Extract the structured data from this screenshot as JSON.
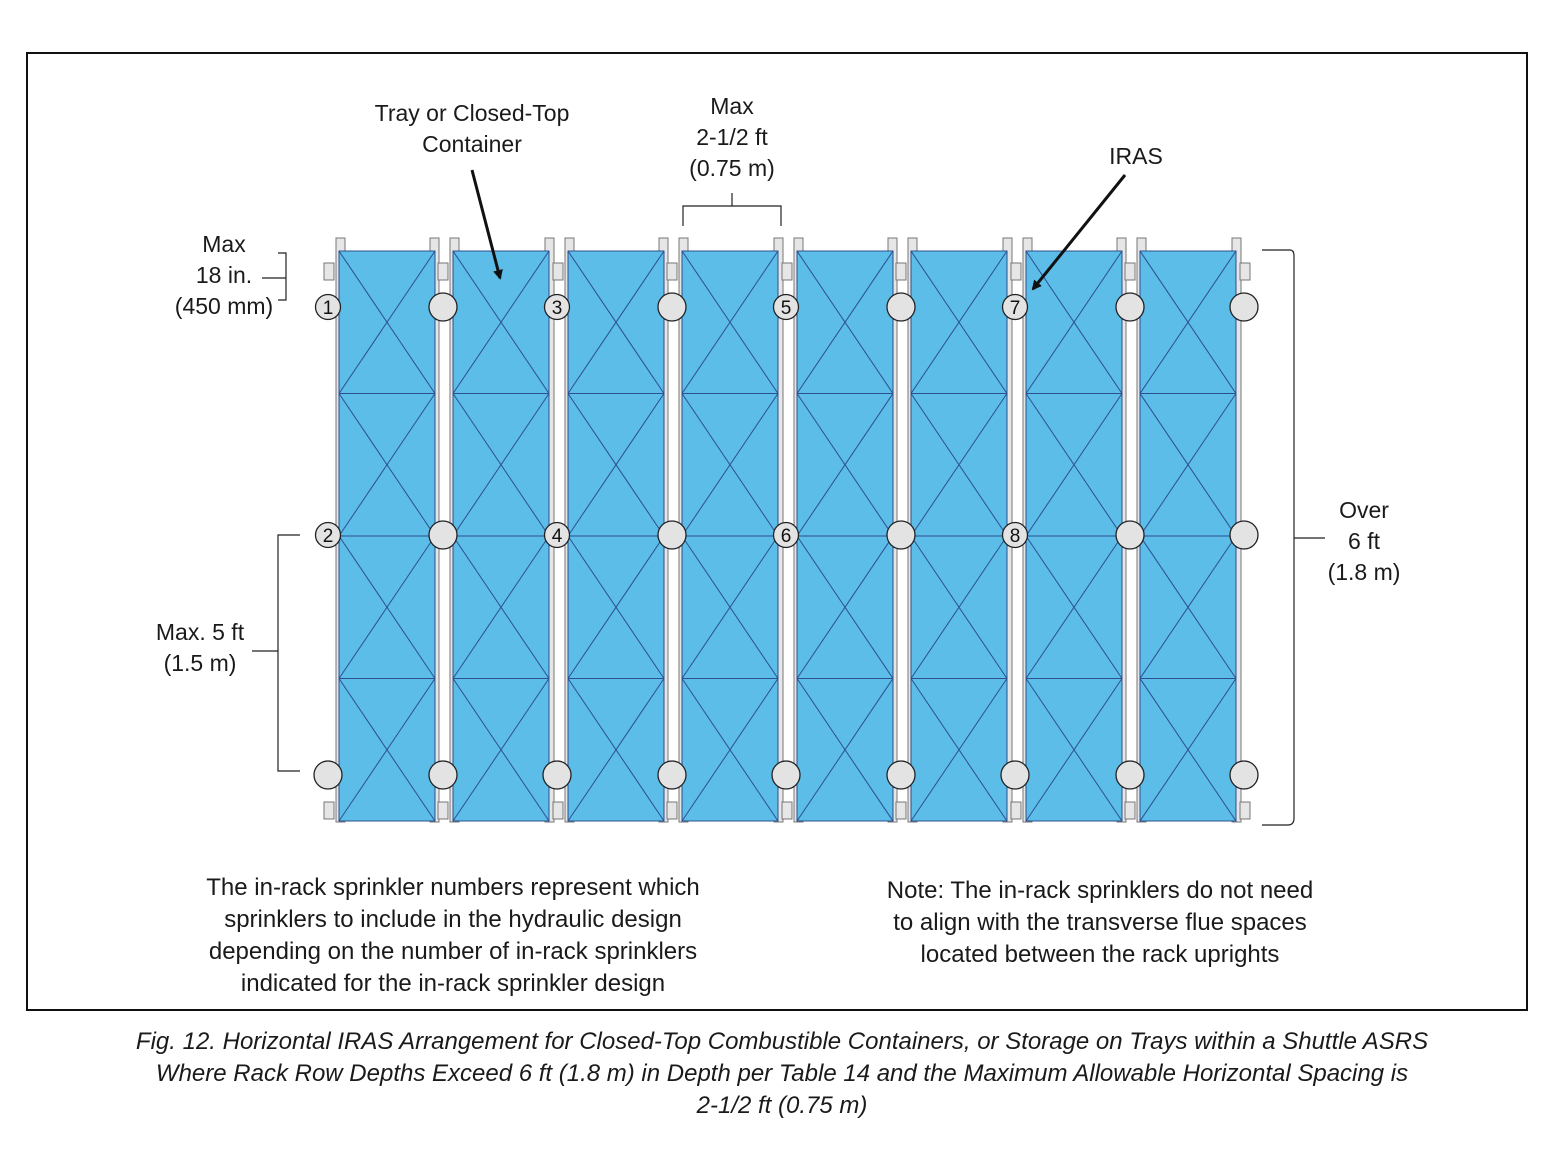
{
  "labels": {
    "tray_container": [
      "Tray or Closed-Top",
      "Container"
    ],
    "max_horizontal": [
      "Max",
      "2-1/2 ft",
      "(0.75 m)"
    ],
    "iras": "IRAS",
    "max_top": [
      "Max",
      "18 in.",
      "(450 mm)"
    ],
    "max_vertical": [
      "Max. 5 ft",
      "(1.5 m)"
    ],
    "over_depth": [
      "Over",
      "6 ft",
      "(1.8 m)"
    ]
  },
  "sprinkler_numbers": [
    "1",
    "2",
    "3",
    "4",
    "5",
    "6",
    "7",
    "8"
  ],
  "notes": {
    "left": [
      "The in-rack sprinkler numbers represent which",
      "sprinklers to include in the hydraulic design",
      "depending on the number of in-rack sprinklers",
      "indicated for the in-rack sprinkler design"
    ],
    "right": [
      "Note: The in-rack sprinklers do not need",
      "to align with the transverse flue spaces",
      "located between the rack uprights"
    ]
  },
  "caption": [
    "Fig. 12. Horizontal IRAS Arrangement for Closed-Top Combustible Containers, or Storage on Trays within a Shuttle ASRS",
    "Where Rack Row Depths Exceed 6 ft (1.8 m) in Depth per Table 14 and the Maximum Allowable Horizontal Spacing is",
    "2-1/2 ft (0.75 m)"
  ],
  "colors": {
    "container_fill": "#5bbde8",
    "container_lines": "#2d4f8f",
    "sprinkler_fill": "#e3e3e3",
    "upright": "#e6e6e6"
  }
}
